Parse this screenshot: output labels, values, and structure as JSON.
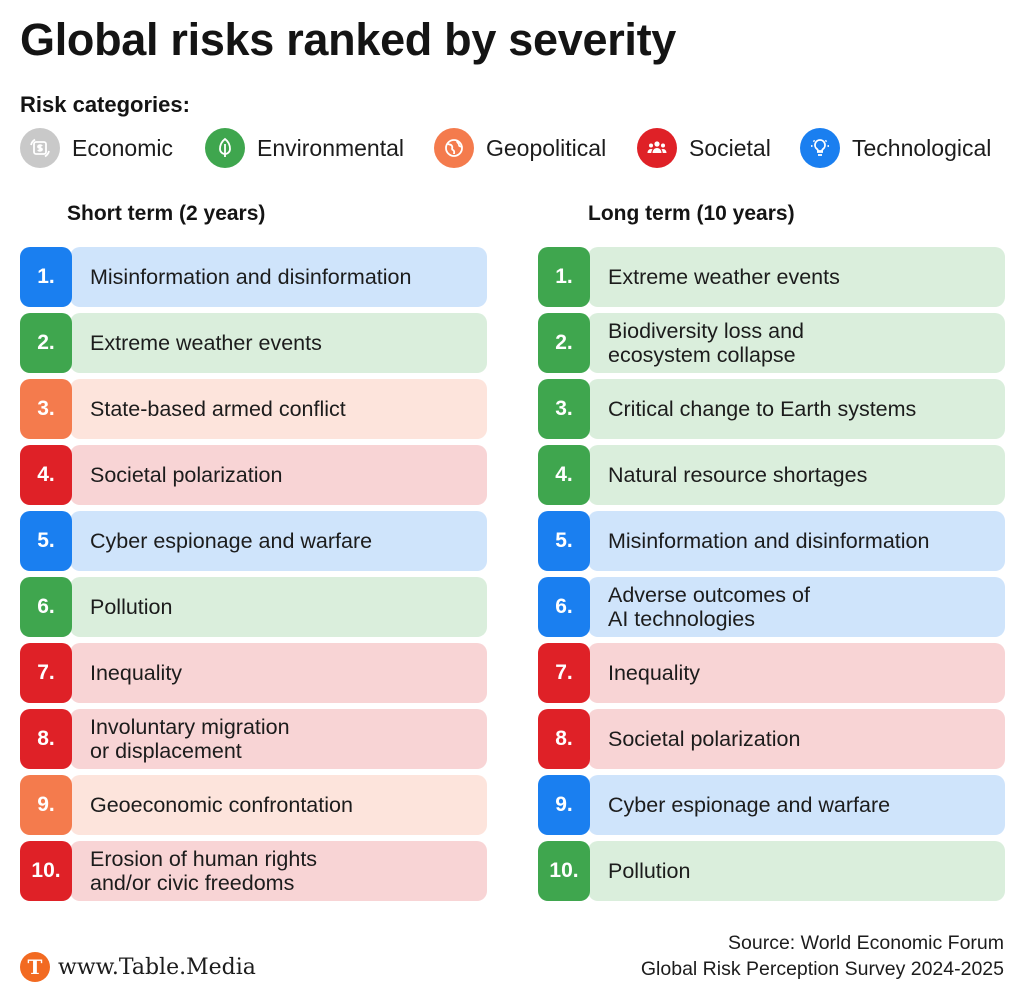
{
  "title": "Global risks ranked by severity",
  "categories_heading": "Risk categories:",
  "categories": [
    {
      "key": "economic",
      "label": "Economic",
      "color": "#c9c9c9",
      "icon": "dollar-exchange-icon"
    },
    {
      "key": "environmental",
      "label": "Environmental",
      "color": "#3fa64e",
      "icon": "leaf-icon"
    },
    {
      "key": "geopolitical",
      "label": "Geopolitical",
      "color": "#f47b4d",
      "icon": "globe-icon"
    },
    {
      "key": "societal",
      "label": "Societal",
      "color": "#df2127",
      "icon": "people-icon"
    },
    {
      "key": "technological",
      "label": "Technological",
      "color": "#1a7ff0",
      "icon": "lightbulb-icon"
    }
  ],
  "category_fills": {
    "economic": "#ececec",
    "environmental": "#daeedc",
    "geopolitical": "#fde4dc",
    "societal": "#f8d4d5",
    "technological": "#cfe4fb"
  },
  "short_term": {
    "heading": "Short term (2 years)",
    "risks": [
      {
        "rank": "1.",
        "label": "Misinformation and disinformation",
        "category": "technological"
      },
      {
        "rank": "2.",
        "label": "Extreme weather events",
        "category": "environmental"
      },
      {
        "rank": "3.",
        "label": "State-based armed conflict",
        "category": "geopolitical"
      },
      {
        "rank": "4.",
        "label": "Societal polarization",
        "category": "societal"
      },
      {
        "rank": "5.",
        "label": "Cyber espionage and warfare",
        "category": "technological"
      },
      {
        "rank": "6.",
        "label": "Pollution",
        "category": "environmental"
      },
      {
        "rank": "7.",
        "label": "Inequality",
        "category": "societal"
      },
      {
        "rank": "8.",
        "label": "Involuntary migration\nor displacement",
        "category": "societal"
      },
      {
        "rank": "9.",
        "label": "Geoeconomic confrontation",
        "category": "geopolitical"
      },
      {
        "rank": "10.",
        "label": "Erosion of human rights\nand/or civic freedoms",
        "category": "societal"
      }
    ]
  },
  "long_term": {
    "heading": "Long term (10 years)",
    "risks": [
      {
        "rank": "1.",
        "label": "Extreme weather events",
        "category": "environmental"
      },
      {
        "rank": "2.",
        "label": "Biodiversity loss and\necosystem collapse",
        "category": "environmental"
      },
      {
        "rank": "3.",
        "label": "Critical change to Earth systems",
        "category": "environmental"
      },
      {
        "rank": "4.",
        "label": "Natural resource shortages",
        "category": "environmental"
      },
      {
        "rank": "5.",
        "label": "Misinformation and disinformation",
        "category": "technological"
      },
      {
        "rank": "6.",
        "label": "Adverse outcomes of\nAI technologies",
        "category": "technological"
      },
      {
        "rank": "7.",
        "label": "Inequality",
        "category": "societal"
      },
      {
        "rank": "8.",
        "label": "Societal polarization",
        "category": "societal"
      },
      {
        "rank": "9.",
        "label": "Cyber espionage and warfare",
        "category": "technological"
      },
      {
        "rank": "10.",
        "label": "Pollution",
        "category": "environmental"
      }
    ]
  },
  "brand": {
    "logo_letter": "T",
    "text": "www.Table.Media"
  },
  "source": {
    "line1": "Source: World Economic Forum",
    "line2": "Global Risk Perception Survey 2024-2025"
  }
}
